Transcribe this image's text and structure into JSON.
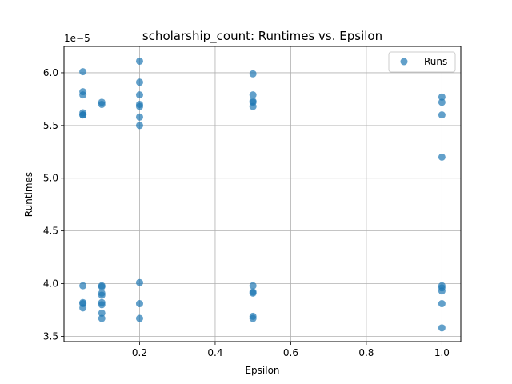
{
  "chart_data": {
    "type": "scatter",
    "title": "scholarship_count: Runtimes vs. Epsilon",
    "xlabel": "Epsilon",
    "ylabel": "Runtimes",
    "y_offset_label": "1e−5",
    "xlim": [
      0.0,
      1.05
    ],
    "ylim": [
      3.45,
      6.25
    ],
    "x_ticks": [
      0.2,
      0.4,
      0.6,
      0.8,
      1.0
    ],
    "x_tick_labels": [
      "0.2",
      "0.4",
      "0.6",
      "0.8",
      "1.0"
    ],
    "y_ticks": [
      3.5,
      4.0,
      4.5,
      5.0,
      5.5,
      6.0
    ],
    "y_tick_labels": [
      "3.5",
      "4.0",
      "4.5",
      "5.0",
      "5.5",
      "6.0"
    ],
    "grid": true,
    "legend_position": "top-right",
    "series": [
      {
        "name": "Runs",
        "color": "#1f77b4",
        "points": [
          [
            0.05,
            6.01
          ],
          [
            0.05,
            5.82
          ],
          [
            0.05,
            5.79
          ],
          [
            0.05,
            5.62
          ],
          [
            0.05,
            5.6
          ],
          [
            0.05,
            5.6
          ],
          [
            0.05,
            3.98
          ],
          [
            0.05,
            3.82
          ],
          [
            0.05,
            3.81
          ],
          [
            0.05,
            3.77
          ],
          [
            0.1,
            5.72
          ],
          [
            0.1,
            5.7
          ],
          [
            0.1,
            3.98
          ],
          [
            0.1,
            3.97
          ],
          [
            0.1,
            3.91
          ],
          [
            0.1,
            3.89
          ],
          [
            0.1,
            3.82
          ],
          [
            0.1,
            3.8
          ],
          [
            0.1,
            3.72
          ],
          [
            0.1,
            3.67
          ],
          [
            0.2,
            6.11
          ],
          [
            0.2,
            5.91
          ],
          [
            0.2,
            5.79
          ],
          [
            0.2,
            5.7
          ],
          [
            0.2,
            5.68
          ],
          [
            0.2,
            5.58
          ],
          [
            0.2,
            5.5
          ],
          [
            0.2,
            4.01
          ],
          [
            0.2,
            3.81
          ],
          [
            0.2,
            3.67
          ],
          [
            0.5,
            5.99
          ],
          [
            0.5,
            5.79
          ],
          [
            0.5,
            5.73
          ],
          [
            0.5,
            5.72
          ],
          [
            0.5,
            5.68
          ],
          [
            0.5,
            3.98
          ],
          [
            0.5,
            3.92
          ],
          [
            0.5,
            3.91
          ],
          [
            0.5,
            3.69
          ],
          [
            0.5,
            3.67
          ],
          [
            1.0,
            5.77
          ],
          [
            1.0,
            5.72
          ],
          [
            1.0,
            5.6
          ],
          [
            1.0,
            5.2
          ],
          [
            1.0,
            3.98
          ],
          [
            1.0,
            3.96
          ],
          [
            1.0,
            3.93
          ],
          [
            1.0,
            3.81
          ],
          [
            1.0,
            3.58
          ]
        ]
      }
    ]
  }
}
